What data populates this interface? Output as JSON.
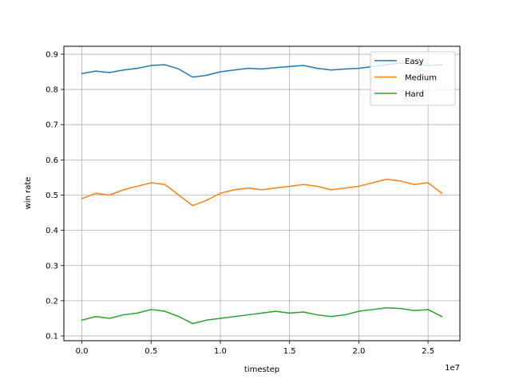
{
  "chart_data": {
    "type": "line",
    "title": "",
    "xlabel": "timestep",
    "ylabel": "win rate",
    "x_offset_label": "1e7",
    "xlim": [
      -1300000,
      27300000
    ],
    "ylim": [
      0.0865,
      0.9225
    ],
    "x_ticks": [
      0,
      5000000,
      10000000,
      15000000,
      20000000,
      25000000
    ],
    "x_tick_labels": [
      "0.0",
      "0.5",
      "1.0",
      "1.5",
      "2.0",
      "2.5"
    ],
    "y_ticks": [
      0.1,
      0.2,
      0.3,
      0.4,
      0.5,
      0.6,
      0.7,
      0.8,
      0.9
    ],
    "y_tick_labels": [
      "0.1",
      "0.2",
      "0.3",
      "0.4",
      "0.5",
      "0.6",
      "0.7",
      "0.8",
      "0.9"
    ],
    "grid": true,
    "legend": {
      "position": "top-right"
    },
    "colors": {
      "Easy": "#1f77b4",
      "Medium": "#ff7f0e",
      "Hard": "#2ca02c"
    },
    "x": [
      0,
      1000000,
      2000000,
      3000000,
      4000000,
      5000000,
      6000000,
      7000000,
      8000000,
      9000000,
      10000000,
      11000000,
      12000000,
      13000000,
      14000000,
      15000000,
      16000000,
      17000000,
      18000000,
      19000000,
      20000000,
      21000000,
      22000000,
      23000000,
      24000000,
      25000000,
      26000000
    ],
    "series": [
      {
        "name": "Easy",
        "values": [
          0.845,
          0.852,
          0.848,
          0.855,
          0.86,
          0.868,
          0.87,
          0.858,
          0.835,
          0.84,
          0.85,
          0.855,
          0.86,
          0.858,
          0.862,
          0.865,
          0.868,
          0.86,
          0.855,
          0.858,
          0.86,
          0.865,
          0.87,
          0.875,
          0.872,
          0.868,
          0.87
        ]
      },
      {
        "name": "Medium",
        "values": [
          0.49,
          0.505,
          0.5,
          0.515,
          0.525,
          0.535,
          0.53,
          0.5,
          0.47,
          0.485,
          0.505,
          0.515,
          0.52,
          0.515,
          0.52,
          0.525,
          0.53,
          0.525,
          0.515,
          0.52,
          0.525,
          0.535,
          0.545,
          0.54,
          0.53,
          0.535,
          0.505
        ]
      },
      {
        "name": "Hard",
        "values": [
          0.145,
          0.155,
          0.15,
          0.16,
          0.165,
          0.175,
          0.17,
          0.155,
          0.135,
          0.145,
          0.15,
          0.155,
          0.16,
          0.165,
          0.17,
          0.165,
          0.168,
          0.16,
          0.155,
          0.16,
          0.17,
          0.175,
          0.18,
          0.178,
          0.172,
          0.175,
          0.155
        ]
      }
    ]
  }
}
